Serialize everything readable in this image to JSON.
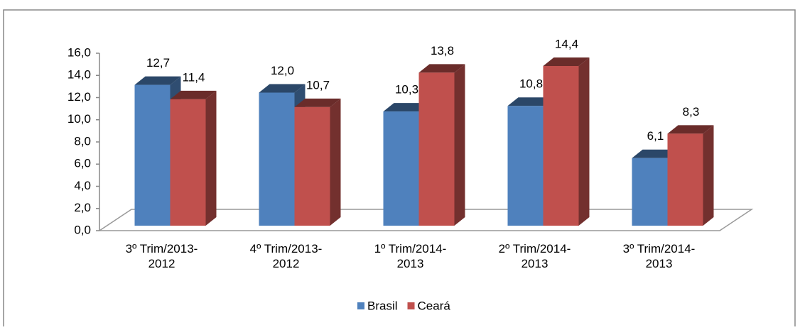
{
  "chart_data": {
    "type": "bar3d",
    "categories": [
      "3º Trim/2013-2012",
      "4º Trim/2013-2012",
      "1º Trim/2014-2013",
      "2º Trim/2014-2013",
      "3º Trim/2014-2013"
    ],
    "series": [
      {
        "name": "Brasil",
        "color": "#4f81bd",
        "values": [
          12.7,
          12.0,
          10.3,
          10.8,
          6.1
        ],
        "value_labels": [
          "12,7",
          "12,0",
          "10,3",
          "10,8",
          "6,1"
        ]
      },
      {
        "name": "Ceará",
        "color": "#c0504d",
        "values": [
          11.4,
          10.7,
          13.8,
          14.4,
          8.3
        ],
        "value_labels": [
          "11,4",
          "10,7",
          "13,8",
          "14,4",
          "8,3"
        ]
      }
    ],
    "ylim": [
      0,
      16
    ],
    "yticks": [
      {
        "value": 0,
        "label": "0,0"
      },
      {
        "value": 2,
        "label": "2,0"
      },
      {
        "value": 4,
        "label": "4,0"
      },
      {
        "value": 6,
        "label": "6,0"
      },
      {
        "value": 8,
        "label": "8,0"
      },
      {
        "value": 10,
        "label": "10,0"
      },
      {
        "value": 12,
        "label": "12,0"
      },
      {
        "value": 14,
        "label": "14,0"
      },
      {
        "value": 16,
        "label": "16,0"
      }
    ],
    "legend": "bottom"
  }
}
